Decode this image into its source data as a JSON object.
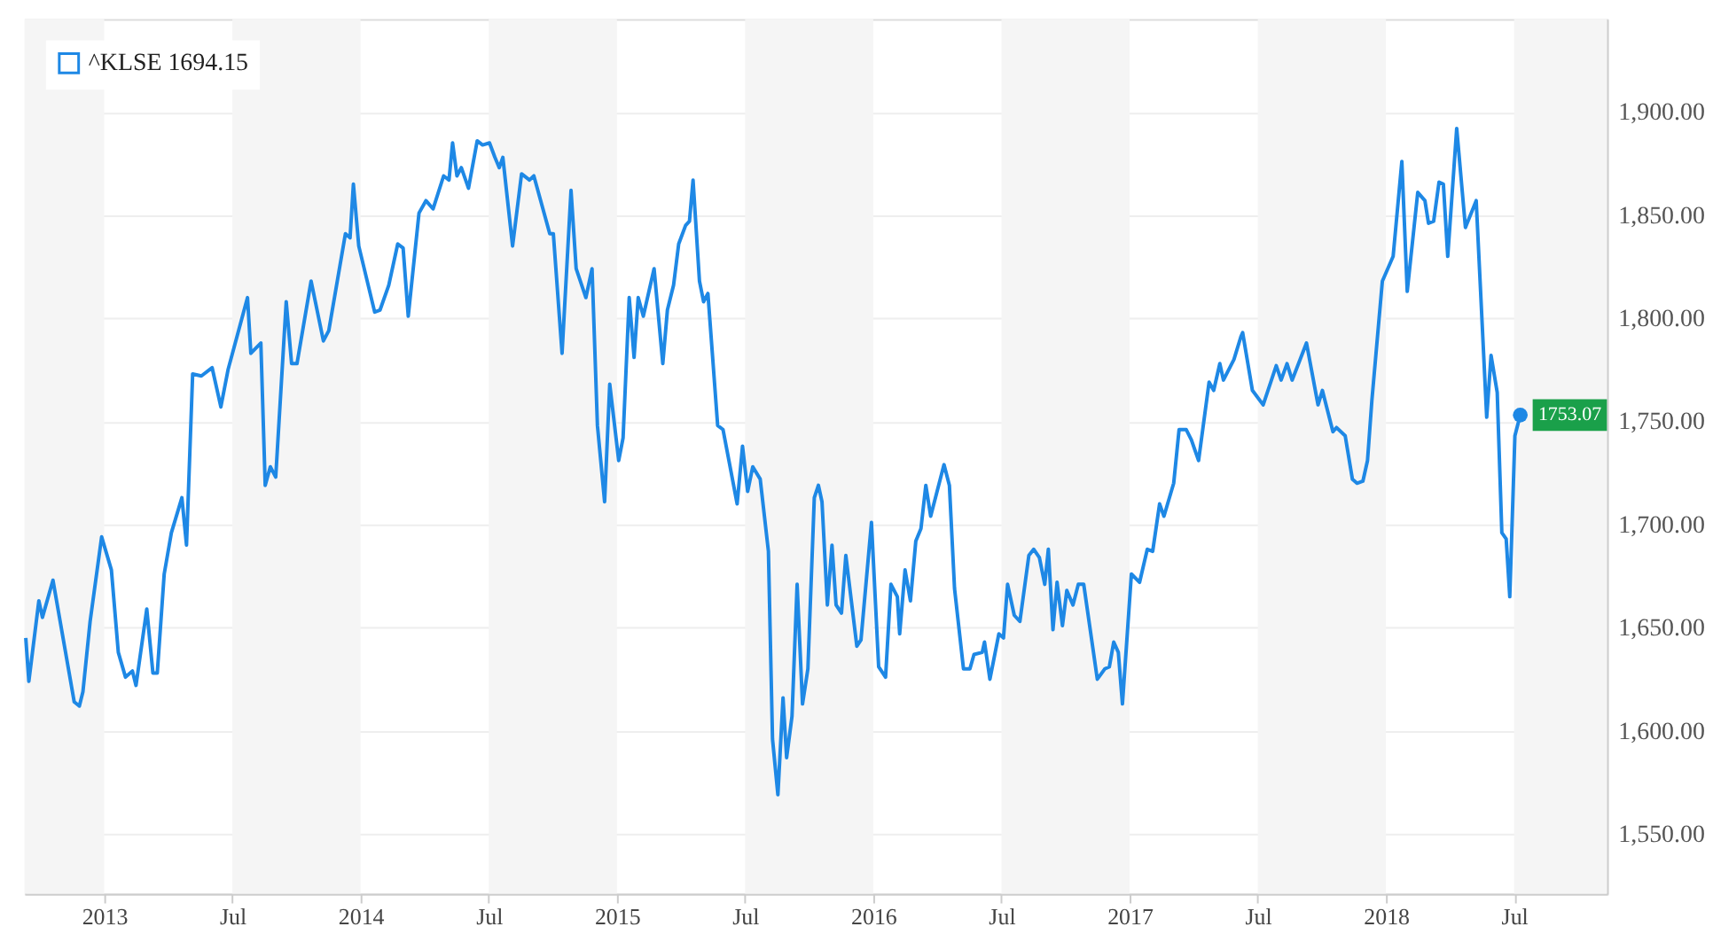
{
  "chart_data": {
    "type": "line",
    "x": [
      2012.694,
      2012.706,
      2012.745,
      2012.759,
      2012.8,
      2012.883,
      2012.903,
      2012.917,
      2012.945,
      2012.99,
      2013.028,
      2013.055,
      2013.083,
      2013.11,
      2013.124,
      2013.166,
      2013.19,
      2013.207,
      2013.234,
      2013.262,
      2013.303,
      2013.321,
      2013.345,
      2013.379,
      2013.421,
      2013.455,
      2013.483,
      2013.559,
      2013.572,
      2013.611,
      2013.628,
      2013.648,
      2013.669,
      2013.71,
      2013.731,
      2013.752,
      2013.807,
      2013.855,
      2013.876,
      2013.941,
      2013.959,
      2013.972,
      2013.993,
      2014.055,
      2014.076,
      2014.11,
      2014.145,
      2014.166,
      2014.186,
      2014.228,
      2014.255,
      2014.283,
      2014.324,
      2014.345,
      2014.359,
      2014.376,
      2014.393,
      2014.421,
      2014.455,
      2014.476,
      2014.503,
      2014.524,
      2014.541,
      2014.555,
      2014.593,
      2014.628,
      2014.659,
      2014.676,
      2014.738,
      2014.752,
      2014.786,
      2014.821,
      2014.841,
      2014.879,
      2014.903,
      2014.924,
      2014.952,
      2014.972,
      2015.007,
      2015.024,
      2015.048,
      2015.067,
      2015.083,
      2015.103,
      2015.145,
      2015.179,
      2015.197,
      2015.221,
      2015.241,
      2015.268,
      2015.283,
      2015.297,
      2015.322,
      2015.338,
      2015.355,
      2015.393,
      2015.414,
      2015.469,
      2015.49,
      2015.51,
      2015.53,
      2015.559,
      2015.591,
      2015.607,
      2015.628,
      2015.648,
      2015.662,
      2015.683,
      2015.703,
      2015.724,
      2015.745,
      2015.77,
      2015.786,
      2015.8,
      2015.821,
      2015.839,
      2015.855,
      2015.876,
      2015.893,
      2015.936,
      2015.952,
      2015.993,
      2016.021,
      2016.048,
      2016.069,
      2016.094,
      2016.103,
      2016.124,
      2016.145,
      2016.166,
      2016.186,
      2016.205,
      2016.224,
      2016.276,
      2016.297,
      2016.317,
      2016.352,
      2016.377,
      2016.393,
      2016.425,
      2016.434,
      2016.455,
      2016.49,
      2016.508,
      2016.524,
      2016.55,
      2016.572,
      2016.607,
      2016.626,
      2016.648,
      2016.669,
      2016.683,
      2016.701,
      2016.717,
      2016.738,
      2016.755,
      2016.779,
      2016.8,
      2016.821,
      2016.874,
      2016.903,
      2016.921,
      2016.938,
      2016.956,
      2016.972,
      2017.007,
      2017.039,
      2017.069,
      2017.09,
      2017.117,
      2017.134,
      2017.172,
      2017.193,
      2017.221,
      2017.241,
      2017.269,
      2017.31,
      2017.328,
      2017.352,
      2017.366,
      2017.407,
      2017.434,
      2017.441,
      2017.479,
      2017.521,
      2017.572,
      2017.591,
      2017.614,
      2017.634,
      2017.69,
      2017.735,
      2017.752,
      2017.793,
      2017.807,
      2017.841,
      2017.869,
      2017.887,
      2017.91,
      2017.928,
      2017.945,
      2017.986,
      2018.028,
      2018.062,
      2018.083,
      2018.124,
      2018.152,
      2018.166,
      2018.186,
      2018.207,
      2018.224,
      2018.241,
      2018.276,
      2018.31,
      2018.352,
      2018.393,
      2018.41,
      2018.434,
      2018.452,
      2018.469,
      2018.483,
      2018.503,
      2018.524
    ],
    "series": [
      {
        "name": "^KLSE 1694.15",
        "color": "#1e88e5",
        "values": [
          1645,
          1624,
          1663,
          1655,
          1673,
          1614,
          1612,
          1619,
          1653,
          1694,
          1678,
          1638,
          1626,
          1629,
          1622,
          1659,
          1628,
          1628,
          1676,
          1696,
          1713,
          1690,
          1773,
          1772,
          1776,
          1757,
          1775,
          1810,
          1783,
          1788,
          1719,
          1728,
          1723,
          1808,
          1778,
          1778,
          1818,
          1789,
          1794,
          1841,
          1839,
          1865,
          1835,
          1803,
          1804,
          1816,
          1836,
          1834,
          1801,
          1851,
          1857,
          1853,
          1869,
          1867,
          1885,
          1869,
          1873,
          1863,
          1886,
          1884,
          1885,
          1878,
          1873,
          1878,
          1835,
          1870,
          1867,
          1869,
          1841,
          1841,
          1783,
          1862,
          1824,
          1810,
          1824,
          1748,
          1711,
          1768,
          1731,
          1742,
          1810,
          1781,
          1810,
          1801,
          1824,
          1778,
          1804,
          1816,
          1836,
          1845,
          1847,
          1867,
          1818,
          1808,
          1812,
          1748,
          1746,
          1710,
          1738,
          1716,
          1728,
          1722,
          1687,
          1596,
          1569,
          1616,
          1587,
          1607,
          1671,
          1613,
          1630,
          1713,
          1719,
          1711,
          1661,
          1690,
          1661,
          1657,
          1685,
          1641,
          1644,
          1701,
          1631,
          1626,
          1671,
          1665,
          1647,
          1678,
          1663,
          1692,
          1698,
          1719,
          1704,
          1729,
          1719,
          1669,
          1630,
          1630,
          1637,
          1638,
          1643,
          1625,
          1647,
          1645,
          1671,
          1656,
          1653,
          1685,
          1688,
          1684,
          1671,
          1688,
          1649,
          1672,
          1651,
          1668,
          1661,
          1671,
          1671,
          1625,
          1630,
          1631,
          1643,
          1638,
          1613,
          1676,
          1672,
          1688,
          1687,
          1710,
          1704,
          1720,
          1746,
          1746,
          1741,
          1731,
          1769,
          1765,
          1778,
          1770,
          1780,
          1791,
          1793,
          1765,
          1758,
          1777,
          1770,
          1778,
          1770,
          1788,
          1758,
          1765,
          1745,
          1747,
          1743,
          1722,
          1720,
          1721,
          1731,
          1760,
          1818,
          1830,
          1876,
          1813,
          1861,
          1857,
          1846,
          1847,
          1866,
          1865,
          1830,
          1892,
          1844,
          1857,
          1752,
          1782,
          1764,
          1696,
          1693,
          1665,
          1743,
          1753.07
        ]
      }
    ],
    "xlim": [
      2012.69,
      2018.862
    ],
    "xticks": [
      {
        "value": 2013,
        "label": "2013"
      },
      {
        "value": 2013.5,
        "label": "Jul"
      },
      {
        "value": 2014,
        "label": "2014"
      },
      {
        "value": 2014.5,
        "label": "Jul"
      },
      {
        "value": 2015,
        "label": "2015"
      },
      {
        "value": 2015.5,
        "label": "Jul"
      },
      {
        "value": 2016,
        "label": "2016"
      },
      {
        "value": 2016.5,
        "label": "Jul"
      },
      {
        "value": 2017,
        "label": "2017"
      },
      {
        "value": 2017.5,
        "label": "Jul"
      },
      {
        "value": 2018,
        "label": "2018"
      },
      {
        "value": 2018.5,
        "label": "Jul"
      }
    ],
    "ylim": [
      1521,
      1945
    ],
    "yticks": [
      {
        "value": 1550,
        "label": "1,550.00"
      },
      {
        "value": 1600,
        "label": "1,600.00"
      },
      {
        "value": 1650,
        "label": "1,650.00"
      },
      {
        "value": 1700,
        "label": "1,700.00"
      },
      {
        "value": 1750,
        "label": "1,750.00"
      },
      {
        "value": 1800,
        "label": "1,800.00"
      },
      {
        "value": 1850,
        "label": "1,850.00"
      },
      {
        "value": 1900,
        "label": "1,900.00"
      }
    ],
    "bands": [
      {
        "axis": "x",
        "from": 2012.69,
        "to": 2013,
        "color": "#f5f5f5"
      },
      {
        "axis": "x",
        "from": 2013.5,
        "to": 2014,
        "color": "#f5f5f5"
      },
      {
        "axis": "x",
        "from": 2014.5,
        "to": 2015,
        "color": "#f5f5f5"
      },
      {
        "axis": "x",
        "from": 2015.5,
        "to": 2016,
        "color": "#f5f5f5"
      },
      {
        "axis": "x",
        "from": 2016.5,
        "to": 2017,
        "color": "#f5f5f5"
      },
      {
        "axis": "x",
        "from": 2017.5,
        "to": 2018,
        "color": "#f5f5f5"
      },
      {
        "axis": "x",
        "from": 2018.5,
        "to": 2018.862,
        "color": "#f5f5f5"
      }
    ],
    "annotations": [
      {
        "text": "1753.07",
        "x": 2018.524,
        "y": 1753.07
      }
    ],
    "grid": "y",
    "legend": "top left",
    "line_style": "solid"
  }
}
